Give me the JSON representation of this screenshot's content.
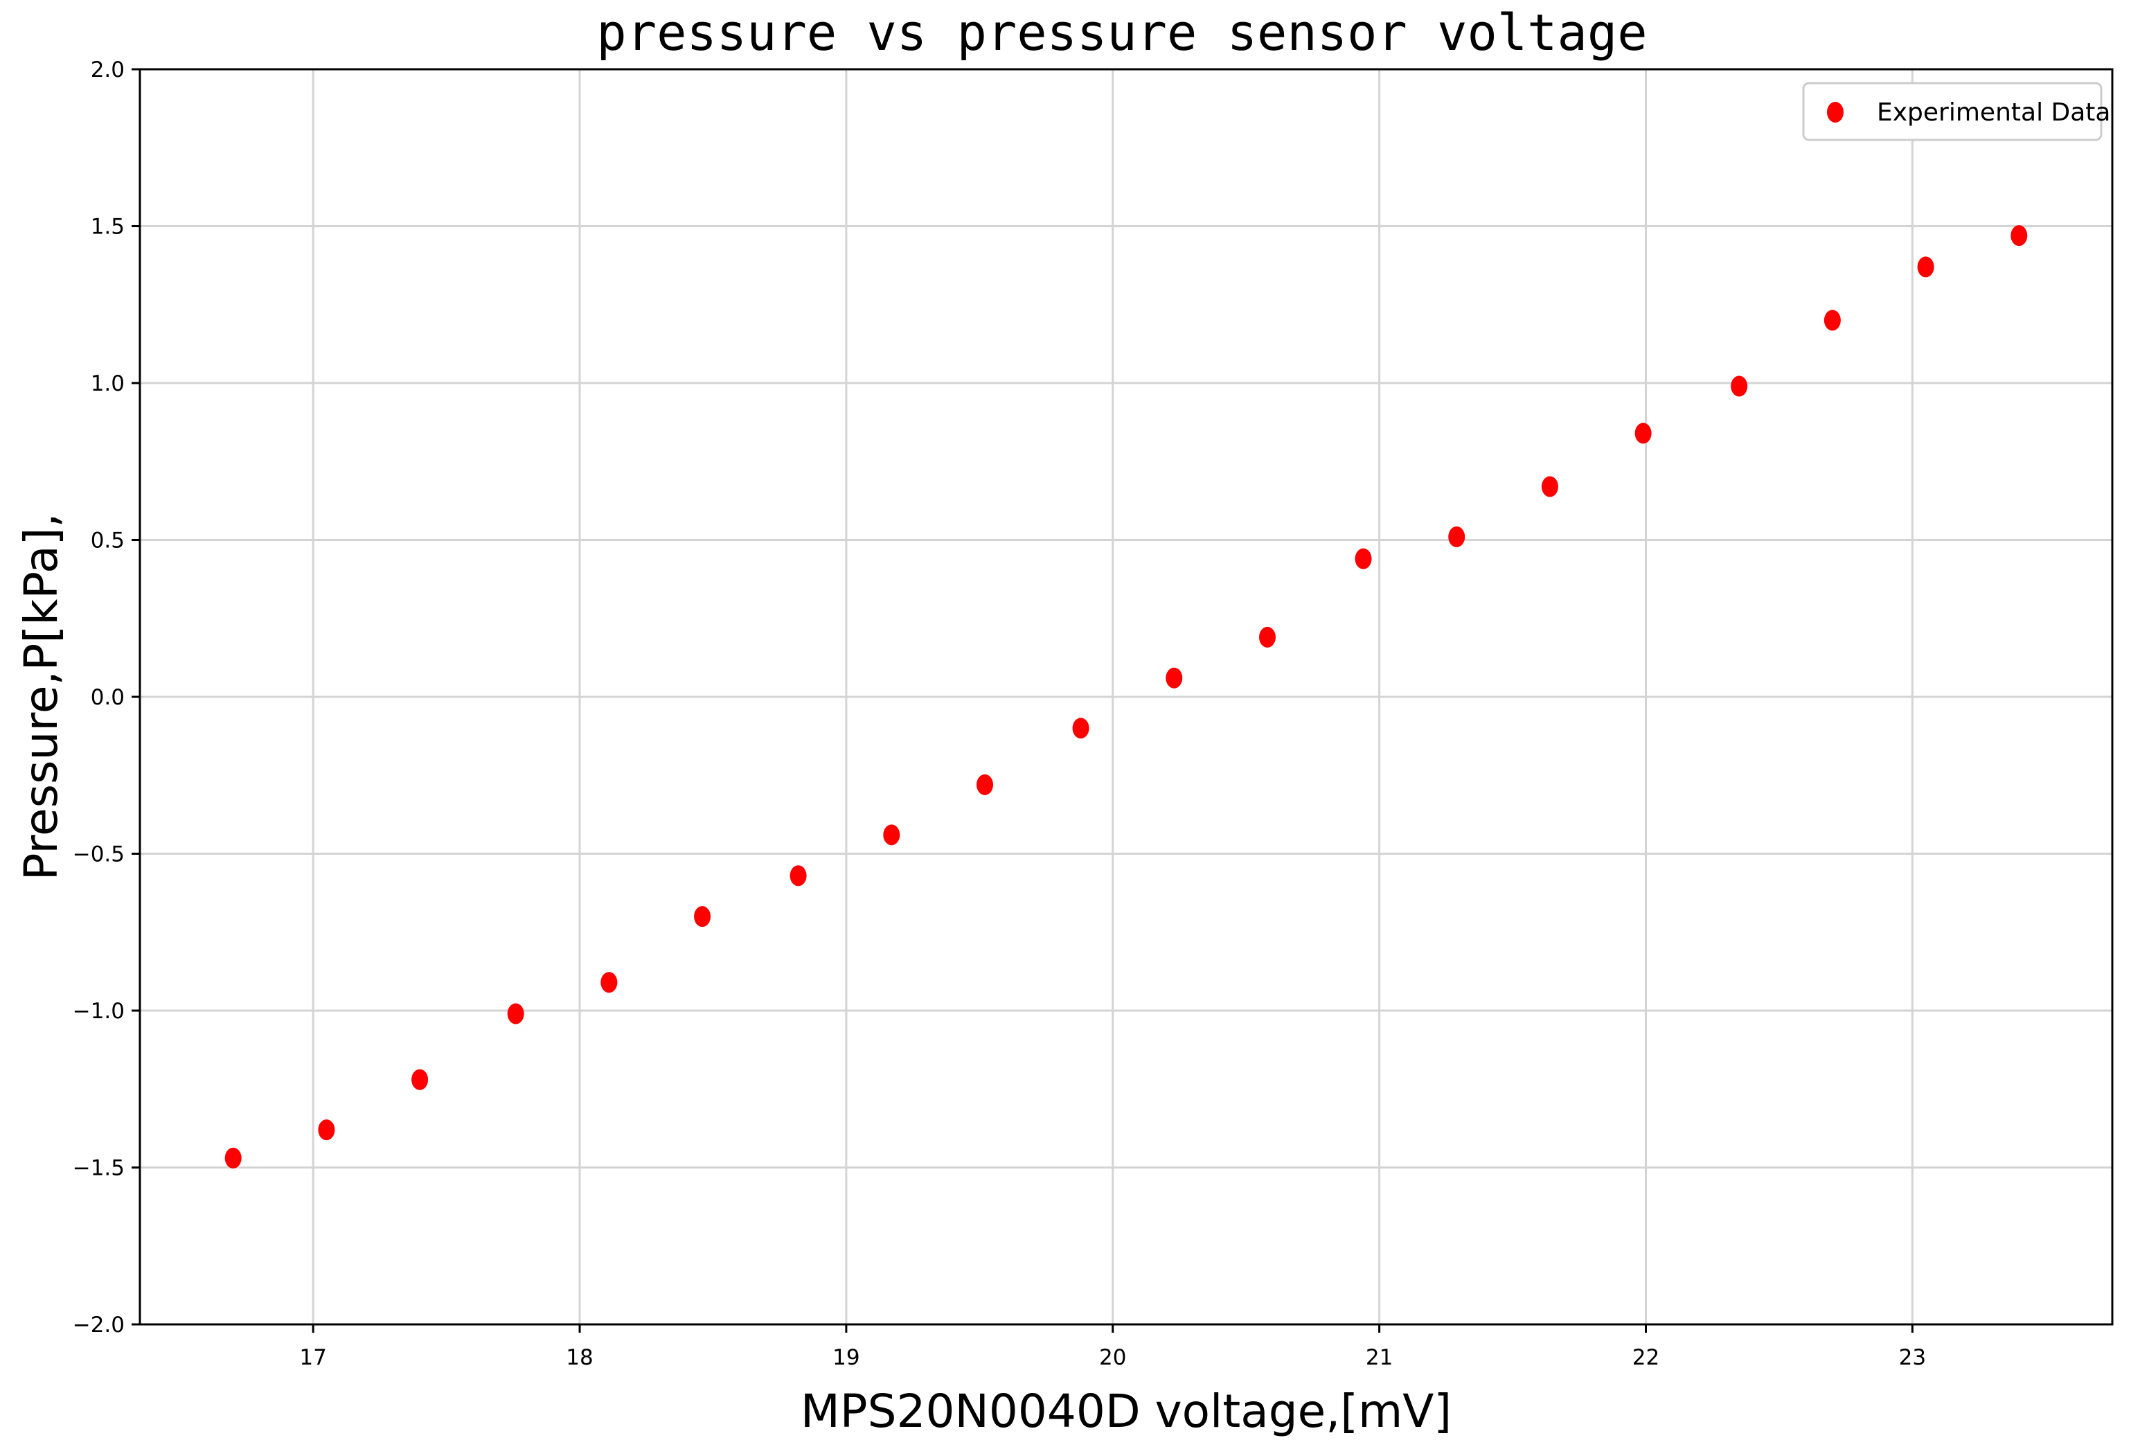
{
  "chart_data": {
    "type": "scatter",
    "title": "pressure vs pressure sensor voltage",
    "xlabel": "MPS20N0040D voltage,[mV]",
    "ylabel": "Pressure,P[kPa],",
    "xlim": [
      16.35,
      23.75
    ],
    "ylim": [
      -2.0,
      2.0
    ],
    "xticks": [
      "17",
      "18",
      "19",
      "20",
      "21",
      "22",
      "23"
    ],
    "yticks": [
      "2.0",
      "1.5",
      "1.0",
      "0.5",
      "0.0",
      "−0.5",
      "−1.0",
      "−1.5",
      "−2.0"
    ],
    "grid": true,
    "legend_position": "top-right",
    "series": [
      {
        "name": "Experimental Data",
        "color": "#ff0000",
        "points": [
          {
            "x": 16.7,
            "y": -1.47
          },
          {
            "x": 17.05,
            "y": -1.38
          },
          {
            "x": 17.4,
            "y": -1.22
          },
          {
            "x": 17.76,
            "y": -1.01
          },
          {
            "x": 18.11,
            "y": -0.91
          },
          {
            "x": 18.46,
            "y": -0.7
          },
          {
            "x": 18.82,
            "y": -0.57
          },
          {
            "x": 19.17,
            "y": -0.44
          },
          {
            "x": 19.52,
            "y": -0.28
          },
          {
            "x": 19.88,
            "y": -0.1
          },
          {
            "x": 20.23,
            "y": 0.06
          },
          {
            "x": 20.58,
            "y": 0.19
          },
          {
            "x": 20.94,
            "y": 0.44
          },
          {
            "x": 21.29,
            "y": 0.51
          },
          {
            "x": 21.64,
            "y": 0.67
          },
          {
            "x": 21.99,
            "y": 0.84
          },
          {
            "x": 22.35,
            "y": 0.99
          },
          {
            "x": 22.7,
            "y": 1.2
          },
          {
            "x": 23.05,
            "y": 1.37
          },
          {
            "x": 23.4,
            "y": 1.47
          }
        ]
      }
    ]
  }
}
